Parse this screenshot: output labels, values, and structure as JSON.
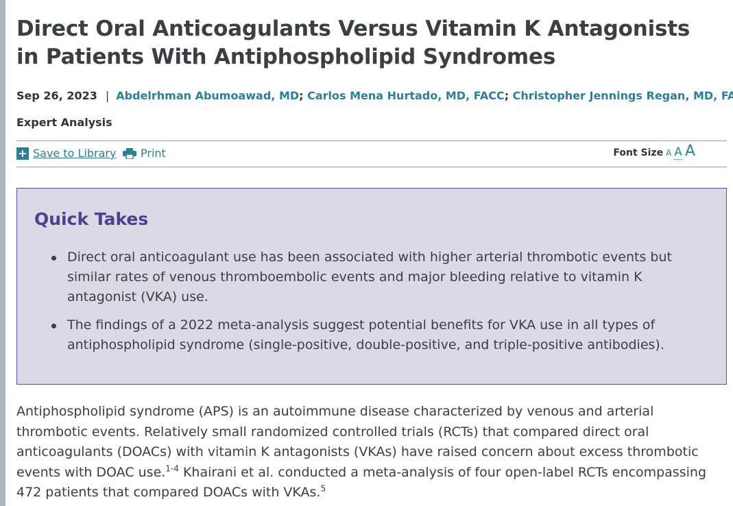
{
  "article": {
    "title": "Direct Oral Anticoagulants Versus Vitamin K Antagonists in Patients With Antiphospholipid Syndromes",
    "date": "Sep 26, 2023",
    "separator": "|",
    "authors": [
      "Abdelrhman Abumoawad, MD",
      "Carlos Mena Hurtado, MD, FACC",
      "Christopher Jennings Regan, MD, FACC"
    ],
    "author_separator": ";",
    "category": "Expert Analysis"
  },
  "toolbar": {
    "save_label": "Save to Library",
    "save_icon": "plus-square-icon",
    "print_label": "Print",
    "print_icon": "printer-icon",
    "font_size_label": "Font Size",
    "font_size_options": [
      "A",
      "A",
      "A"
    ]
  },
  "quick_takes": {
    "title": "Quick Takes",
    "items": [
      "Direct oral anticoagulant use has been associated with higher arterial thrombotic events but similar rates of venous thromboembolic events and major bleeding relative to vitamin K antagonist (VKA) use.",
      "The findings of a 2022 meta-analysis suggest potential benefits for VKA use in all types of antiphospholipid syndrome (single-positive, double-positive, and triple-positive antibodies)."
    ]
  },
  "body": {
    "paragraph_part1": "Antiphospholipid syndrome (APS) is an autoimmune disease characterized by venous and arterial thrombotic events. Relatively small randomized controlled trials (RCTs) that compared direct oral anticoagulants (DOACs) with vitamin K antagonists (VKAs) have raised concern about excess thrombotic events with DOAC use.",
    "ref1": "1-4",
    "paragraph_part2": " Khairani et al. conducted a meta-analysis of four open-label RCTs encompassing 472 patients that compared DOACs with VKAs.",
    "ref2": "5"
  },
  "colors": {
    "link": "#2a7f99",
    "quick_takes_bg": "#dcd9e7",
    "quick_takes_border": "#5a4f96",
    "quick_takes_title": "#4e3f90"
  }
}
